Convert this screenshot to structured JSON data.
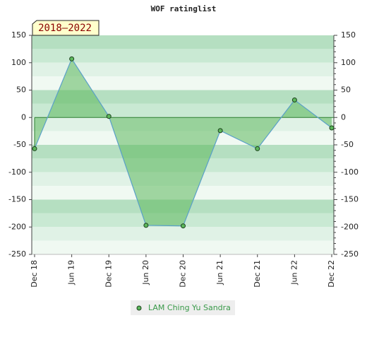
{
  "chart_data": {
    "type": "area",
    "title": "WOF ratinglist",
    "period_label": "2018–2022",
    "categories": [
      "Dec 18",
      "Jun 19",
      "Dec 19",
      "Jun 20",
      "Dec 20",
      "Jun 21",
      "Dec 21",
      "Jun 22",
      "Dec 22"
    ],
    "series": [
      {
        "name": "LAM Ching Yu Sandra",
        "color": "#5cb85c",
        "values": [
          -57,
          107,
          2,
          -197,
          -198,
          -24,
          -57,
          32,
          -19
        ]
      }
    ],
    "ylim": [
      -250,
      150
    ],
    "yticks": [
      -250,
      -200,
      -150,
      -100,
      -50,
      0,
      50,
      100,
      150
    ]
  }
}
